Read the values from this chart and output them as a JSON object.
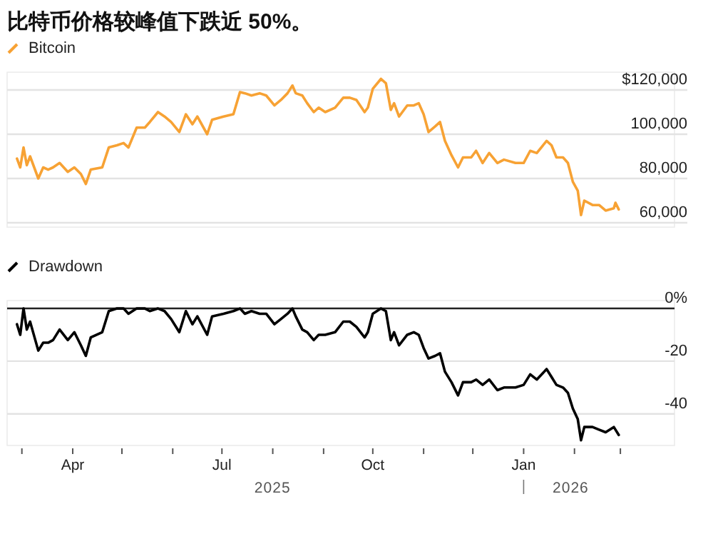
{
  "chart_data": [
    {
      "type": "line",
      "title": "比特币价格较峰值下跌近 50%。",
      "legend": "top left",
      "tick_labels": "y",
      "grid": "y",
      "x": [
        "2025-02-26",
        "2025-02-28",
        "2025-03-02",
        "2025-03-04",
        "2025-03-06",
        "2025-03-11",
        "2025-03-14",
        "2025-03-17",
        "2025-03-20",
        "2025-03-24",
        "2025-03-29",
        "2025-04-02",
        "2025-04-06",
        "2025-04-09",
        "2025-04-12",
        "2025-04-19",
        "2025-04-23",
        "2025-04-28",
        "2025-05-02",
        "2025-05-05",
        "2025-05-10",
        "2025-05-15",
        "2025-05-18",
        "2025-05-23",
        "2025-05-27",
        "2025-05-31",
        "2025-06-05",
        "2025-06-09",
        "2025-06-13",
        "2025-06-16",
        "2025-06-22",
        "2025-06-25",
        "2025-07-02",
        "2025-07-08",
        "2025-07-12",
        "2025-07-15",
        "2025-07-19",
        "2025-07-24",
        "2025-07-28",
        "2025-08-02",
        "2025-08-06",
        "2025-08-10",
        "2025-08-13",
        "2025-08-15",
        "2025-08-19",
        "2025-08-22",
        "2025-08-26",
        "2025-08-29",
        "2025-09-02",
        "2025-09-08",
        "2025-09-13",
        "2025-09-17",
        "2025-09-21",
        "2025-09-26",
        "2025-09-28",
        "2025-10-01",
        "2025-10-06",
        "2025-10-09",
        "2025-10-12",
        "2025-10-14",
        "2025-10-17",
        "2025-10-22",
        "2025-10-26",
        "2025-10-29",
        "2025-11-01",
        "2025-11-04",
        "2025-11-08",
        "2025-11-11",
        "2025-11-14",
        "2025-11-18",
        "2025-11-22",
        "2025-11-25",
        "2025-11-30",
        "2025-12-03",
        "2025-12-07",
        "2025-12-11",
        "2025-12-16",
        "2025-12-20",
        "2025-12-27",
        "2026-01-01",
        "2026-01-05",
        "2026-01-09",
        "2026-01-15",
        "2026-01-18",
        "2026-01-21",
        "2026-01-25",
        "2026-01-28",
        "2026-01-31",
        "2026-02-03",
        "2026-02-05",
        "2026-02-07",
        "2026-02-12",
        "2026-02-16",
        "2026-02-20",
        "2026-02-25",
        "2026-02-26",
        "2026-02-28"
      ],
      "xlim": [
        "2025-02-20",
        "2026-04-03"
      ],
      "ylim": [
        58000,
        128000
      ],
      "yticks": [
        {
          "value": 60000,
          "label": "60,000"
        },
        {
          "value": 80000,
          "label": "80,000"
        },
        {
          "value": 100000,
          "label": "100,000"
        },
        {
          "value": 120000,
          "label": "$120,000"
        }
      ],
      "series": [
        {
          "name": "Bitcoin",
          "color": "#f7a234",
          "values": [
            89000,
            85000,
            94000,
            86000,
            90000,
            80000,
            85000,
            84000,
            85000,
            87000,
            83000,
            85000,
            82000,
            77500,
            84000,
            85000,
            94000,
            95000,
            96000,
            94000,
            103000,
            103000,
            105500,
            110000,
            108000,
            105500,
            101000,
            109000,
            104500,
            108000,
            100000,
            106500,
            108000,
            109000,
            119000,
            118500,
            117500,
            118500,
            117500,
            113000,
            115500,
            118500,
            122000,
            118500,
            117500,
            114000,
            110000,
            112000,
            110000,
            112000,
            116500,
            116500,
            115500,
            110000,
            112000,
            120500,
            125000,
            123000,
            111000,
            114000,
            108000,
            113000,
            113000,
            114000,
            109000,
            101000,
            103500,
            105500,
            97000,
            90500,
            85000,
            89500,
            89500,
            92500,
            87000,
            91500,
            87000,
            88500,
            87000,
            87000,
            92500,
            91500,
            97000,
            95000,
            89500,
            89500,
            87000,
            78500,
            74500,
            63500,
            70000,
            68000,
            68000,
            65500,
            66500,
            69000,
            66000
          ]
        }
      ]
    },
    {
      "type": "line",
      "legend": "top left",
      "grid": "y",
      "x": [
        "2025-02-26",
        "2025-02-28",
        "2025-03-02",
        "2025-03-04",
        "2025-03-06",
        "2025-03-11",
        "2025-03-14",
        "2025-03-17",
        "2025-03-20",
        "2025-03-24",
        "2025-03-29",
        "2025-04-02",
        "2025-04-06",
        "2025-04-09",
        "2025-04-12",
        "2025-04-19",
        "2025-04-23",
        "2025-04-28",
        "2025-05-02",
        "2025-05-05",
        "2025-05-10",
        "2025-05-15",
        "2025-05-18",
        "2025-05-23",
        "2025-05-27",
        "2025-05-31",
        "2025-06-05",
        "2025-06-09",
        "2025-06-13",
        "2025-06-16",
        "2025-06-22",
        "2025-06-25",
        "2025-07-02",
        "2025-07-08",
        "2025-07-12",
        "2025-07-15",
        "2025-07-19",
        "2025-07-24",
        "2025-07-28",
        "2025-08-02",
        "2025-08-06",
        "2025-08-10",
        "2025-08-13",
        "2025-08-15",
        "2025-08-19",
        "2025-08-22",
        "2025-08-26",
        "2025-08-29",
        "2025-09-02",
        "2025-09-08",
        "2025-09-13",
        "2025-09-17",
        "2025-09-21",
        "2025-09-26",
        "2025-09-28",
        "2025-10-01",
        "2025-10-06",
        "2025-10-09",
        "2025-10-12",
        "2025-10-14",
        "2025-10-17",
        "2025-10-22",
        "2025-10-26",
        "2025-10-29",
        "2025-11-01",
        "2025-11-04",
        "2025-11-08",
        "2025-11-11",
        "2025-11-14",
        "2025-11-18",
        "2025-11-22",
        "2025-11-25",
        "2025-11-30",
        "2025-12-03",
        "2025-12-07",
        "2025-12-11",
        "2025-12-16",
        "2025-12-20",
        "2025-12-27",
        "2026-01-01",
        "2026-01-05",
        "2026-01-09",
        "2026-01-15",
        "2026-01-18",
        "2026-01-21",
        "2026-01-25",
        "2026-01-28",
        "2026-01-31",
        "2026-02-03",
        "2026-02-05",
        "2026-02-07",
        "2026-02-12",
        "2026-02-16",
        "2026-02-20",
        "2026-02-25",
        "2026-02-26",
        "2026-02-28"
      ],
      "xlim": [
        "2025-02-20",
        "2026-04-03"
      ],
      "xticks": [
        {
          "value": "2025-03-01",
          "label": null
        },
        {
          "value": "2025-04-01",
          "label": "Apr"
        },
        {
          "value": "2025-05-01",
          "label": null
        },
        {
          "value": "2025-06-01",
          "label": null
        },
        {
          "value": "2025-07-01",
          "label": "Jul"
        },
        {
          "value": "2025-08-01",
          "label": null
        },
        {
          "value": "2025-09-01",
          "label": null
        },
        {
          "value": "2025-10-01",
          "label": "Oct"
        },
        {
          "value": "2025-11-01",
          "label": null
        },
        {
          "value": "2025-12-01",
          "label": null
        },
        {
          "value": "2026-01-01",
          "label": "Jan"
        },
        {
          "value": "2026-02-01",
          "label": null
        },
        {
          "value": "2026-03-01",
          "label": null
        }
      ],
      "ylim": [
        -52,
        3
      ],
      "yticks": [
        {
          "value": 0,
          "label": "0%"
        },
        -20,
        -40
      ],
      "annotations": [
        "2025",
        "2026"
      ],
      "series": [
        {
          "name": "Drawdown",
          "color": "#000000",
          "values": [
            -6,
            -10,
            0,
            -8,
            -5,
            -16,
            -13,
            -13,
            -12,
            -8,
            -12,
            -9,
            -14,
            -18,
            -11,
            -9,
            -1,
            0,
            0,
            -2,
            0,
            0,
            -1,
            0,
            -1,
            -4,
            -9,
            -1,
            -6,
            -3,
            -10,
            -3,
            -2,
            -1,
            0,
            -2,
            -1,
            -2,
            -2,
            -6,
            -4,
            -2,
            0,
            -3,
            -8,
            -9,
            -12,
            -10,
            -10,
            -9,
            -5,
            -5,
            -7,
            -11,
            -9,
            -2,
            0,
            -1,
            -12,
            -9,
            -14,
            -10,
            -9,
            -10,
            -15,
            -19,
            -18,
            -17,
            -24,
            -28,
            -33,
            -28,
            -28,
            -27,
            -29,
            -27,
            -31,
            -30,
            -30,
            -29,
            -25,
            -27,
            -23,
            -26,
            -29,
            -30,
            -32,
            -38,
            -42,
            -50,
            -45,
            -45,
            -46,
            -47,
            -45,
            -46,
            -48
          ]
        }
      ]
    }
  ]
}
